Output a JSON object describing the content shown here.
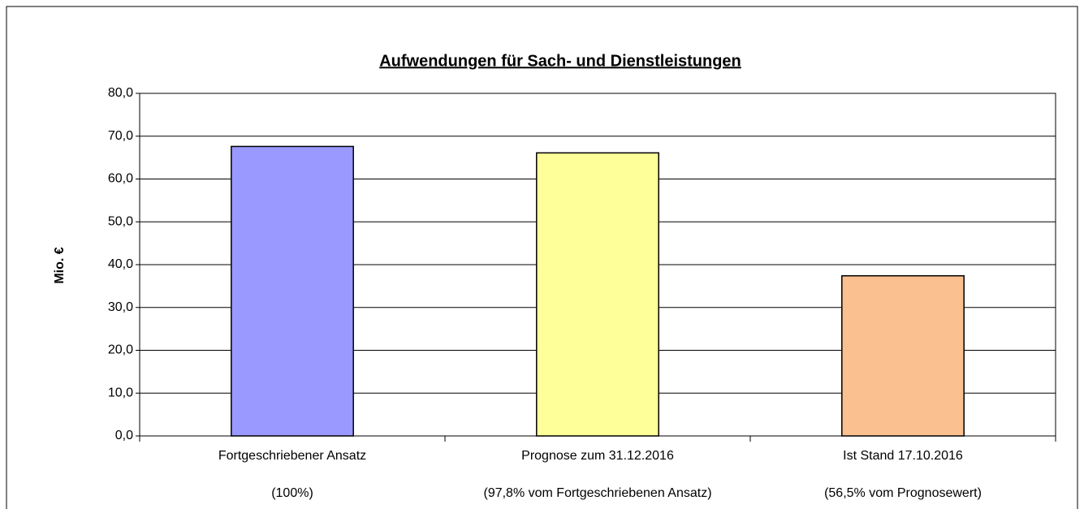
{
  "chart_data": {
    "type": "bar",
    "title": "Aufwendungen für Sach- und Dienstleistungen",
    "y_label": "Mio. €",
    "categories": [
      "Fortgeschriebener Ansatz",
      "Prognose zum 31.12.2016",
      "Ist Stand 17.10.2016"
    ],
    "category_notes": [
      "(100%)",
      "(97,8% vom Fortgeschriebenen Ansatz)",
      "(56,5% vom Prognosewert)"
    ],
    "values": [
      67.6,
      66.1,
      37.4
    ],
    "colors": [
      "#9999ff",
      "#ffff99",
      "#fac090"
    ],
    "ylim": [
      0,
      80
    ],
    "yticks": [
      {
        "value": 0,
        "label": "0,0"
      },
      {
        "value": 10,
        "label": "10,0"
      },
      {
        "value": 20,
        "label": "20,0"
      },
      {
        "value": 30,
        "label": "30,0"
      },
      {
        "value": 40,
        "label": "40,0"
      },
      {
        "value": 50,
        "label": "50,0"
      },
      {
        "value": 60,
        "label": "60,0"
      },
      {
        "value": 70,
        "label": "70,0"
      },
      {
        "value": 80,
        "label": "80,0"
      }
    ],
    "grid": true
  }
}
